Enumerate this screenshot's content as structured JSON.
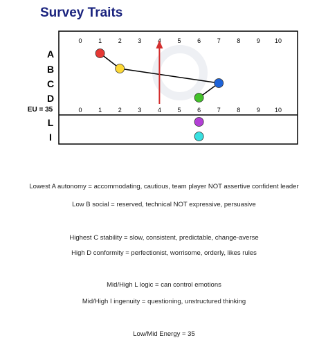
{
  "title": "Survey Traits",
  "chart_data": {
    "type": "scatter",
    "title": "Survey Traits",
    "xlim": [
      0,
      10
    ],
    "x_ticks": [
      "0",
      "1",
      "2",
      "3",
      "4",
      "5",
      "6",
      "7",
      "8",
      "9",
      "10"
    ],
    "rows": [
      "A",
      "B",
      "C",
      "D"
    ],
    "lower_rows": [
      "L",
      "I"
    ],
    "eu_label": "EU = 35",
    "midline_x": 4,
    "series": [
      {
        "values": [
          {
            "row": "A",
            "x": 1,
            "color": "#e53935"
          },
          {
            "row": "B",
            "x": 2,
            "color": "#fdd835"
          },
          {
            "row": "C",
            "x": 7,
            "color": "#1e63d8"
          },
          {
            "row": "D",
            "x": 6,
            "color": "#43c22a"
          }
        ]
      },
      {
        "values": [
          {
            "row": "L",
            "x": 6,
            "color": "#b33fd6"
          },
          {
            "row": "I",
            "x": 6,
            "color": "#39e0e0"
          }
        ]
      }
    ],
    "arrow_color": "#d32f2f"
  },
  "descriptions": [
    "Lowest A autonomy = accommodating, cautious, team player NOT assertive confident leader",
    "Low B social = reserved, technical NOT expressive, persuasive",
    "Highest C stability = slow, consistent, predictable, change-averse",
    "High D conformity = perfectionist, worrisome, orderly, likes rules",
    "Mid/High L logic = can control emotions",
    "Mid/High I ingenuity = questioning, unstructured thinking",
    "Low/Mid Energy = 35"
  ]
}
